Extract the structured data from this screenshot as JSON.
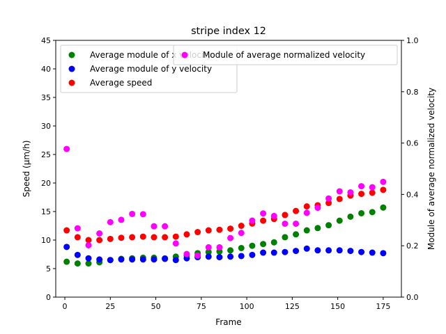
{
  "chart_data": {
    "type": "scatter",
    "title": "stripe index 12",
    "xlabel": "Frame",
    "ylabel": "Speed (μm/h)",
    "ylabel_right": "Module of average normalized velocity",
    "xlim": [
      -5,
      185
    ],
    "ylim": [
      0,
      45
    ],
    "ylim_right": [
      0,
      1
    ],
    "x_ticks": [
      0,
      25,
      50,
      75,
      100,
      125,
      150,
      175
    ],
    "y_ticks": [
      0,
      5,
      10,
      15,
      20,
      25,
      30,
      35,
      40,
      45
    ],
    "y_ticks_right": [
      "0.0",
      "0.2",
      "0.4",
      "0.6",
      "0.8",
      "1.0"
    ],
    "x": [
      1,
      7,
      13,
      19,
      25,
      31,
      37,
      43,
      49,
      55,
      61,
      67,
      73,
      79,
      85,
      91,
      97,
      103,
      109,
      115,
      121,
      127,
      133,
      139,
      145,
      151,
      157,
      163,
      169,
      175
    ],
    "series": [
      {
        "name": "Average module of x velocity",
        "axis": "left",
        "color": "#008000",
        "values": [
          6.2,
          5.9,
          5.9,
          6.1,
          6.5,
          6.7,
          6.8,
          6.9,
          6.9,
          6.8,
          7.1,
          7.3,
          7.7,
          7.9,
          8.0,
          8.2,
          8.6,
          9.0,
          9.3,
          9.6,
          10.5,
          11.0,
          11.7,
          12.1,
          12.6,
          13.4,
          14.1,
          14.7,
          14.9,
          15.7
        ]
      },
      {
        "name": "Average module of y velocity",
        "axis": "left",
        "color": "#0000ff",
        "values": [
          8.8,
          7.4,
          6.8,
          6.6,
          6.5,
          6.6,
          6.6,
          6.6,
          6.6,
          6.7,
          6.5,
          6.8,
          7.0,
          7.1,
          7.0,
          7.1,
          7.2,
          7.4,
          7.8,
          7.8,
          7.9,
          8.1,
          8.5,
          8.2,
          8.2,
          8.2,
          8.1,
          7.9,
          7.8,
          7.7
        ]
      },
      {
        "name": "Average speed",
        "axis": "left",
        "color": "#ff0000",
        "values": [
          11.7,
          10.5,
          10.0,
          10.0,
          10.2,
          10.4,
          10.5,
          10.6,
          10.5,
          10.5,
          10.6,
          11.0,
          11.4,
          11.7,
          11.8,
          12.0,
          12.5,
          12.9,
          13.4,
          13.7,
          14.4,
          15.1,
          15.9,
          16.1,
          16.5,
          17.2,
          17.8,
          18.1,
          18.3,
          18.8
        ]
      },
      {
        "name": "Module of average normalized velocity",
        "axis": "right",
        "color": "#ff00ff",
        "values": [
          0.577,
          0.268,
          0.202,
          0.248,
          0.292,
          0.301,
          0.324,
          0.323,
          0.276,
          0.276,
          0.209,
          0.168,
          0.162,
          0.194,
          0.194,
          0.23,
          0.25,
          0.298,
          0.326,
          0.316,
          0.286,
          0.286,
          0.328,
          0.348,
          0.384,
          0.412,
          0.408,
          0.432,
          0.428,
          0.449
        ]
      }
    ],
    "legend_left": "upper-left",
    "legend_right": "upper-center",
    "grid": false
  }
}
